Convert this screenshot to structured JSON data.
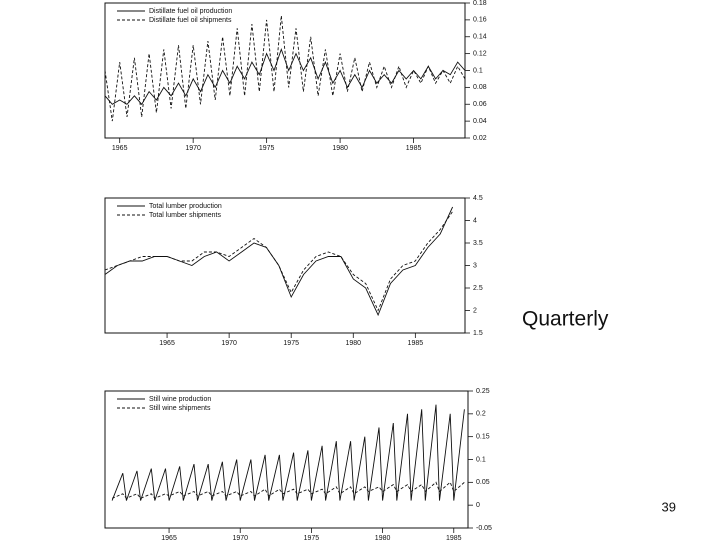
{
  "chart_data": [
    {
      "type": "line",
      "legend": "upper left",
      "xlim": [
        1964,
        1988.5
      ],
      "ylim": [
        0.02,
        0.18
      ],
      "xticks": [
        1965,
        1970,
        1975,
        1980,
        1985
      ],
      "yticks": [
        0.02,
        0.04,
        0.06,
        0.08,
        0.1,
        0.12,
        0.14,
        0.16,
        0.18
      ],
      "x": [
        1964,
        1964.5,
        1965,
        1965.5,
        1966,
        1966.5,
        1967,
        1967.5,
        1968,
        1968.5,
        1969,
        1969.5,
        1970,
        1970.5,
        1971,
        1971.5,
        1972,
        1972.5,
        1973,
        1973.5,
        1974,
        1974.5,
        1975,
        1975.5,
        1976,
        1976.5,
        1977,
        1977.5,
        1978,
        1978.5,
        1979,
        1979.5,
        1980,
        1980.5,
        1981,
        1981.5,
        1982,
        1982.5,
        1983,
        1983.5,
        1984,
        1984.5,
        1985,
        1985.5,
        1986,
        1986.5,
        1987,
        1987.5,
        1988,
        1988.5
      ],
      "series": [
        {
          "name": "Distillate fuel oil production",
          "color": "#111111",
          "style": "solid",
          "values": [
            0.07,
            0.06,
            0.065,
            0.06,
            0.07,
            0.06,
            0.075,
            0.065,
            0.08,
            0.07,
            0.085,
            0.07,
            0.09,
            0.075,
            0.095,
            0.08,
            0.1,
            0.085,
            0.105,
            0.09,
            0.11,
            0.095,
            0.12,
            0.1,
            0.125,
            0.1,
            0.12,
            0.1,
            0.115,
            0.09,
            0.11,
            0.085,
            0.1,
            0.08,
            0.095,
            0.08,
            0.1,
            0.085,
            0.095,
            0.085,
            0.1,
            0.09,
            0.1,
            0.09,
            0.105,
            0.09,
            0.1,
            0.095,
            0.11,
            0.1
          ]
        },
        {
          "name": "Distillate fuel oil shipments",
          "color": "#111111",
          "style": "dashed",
          "values": [
            0.1,
            0.04,
            0.11,
            0.045,
            0.115,
            0.045,
            0.12,
            0.05,
            0.125,
            0.055,
            0.13,
            0.055,
            0.13,
            0.06,
            0.135,
            0.065,
            0.14,
            0.07,
            0.15,
            0.07,
            0.155,
            0.075,
            0.16,
            0.075,
            0.165,
            0.08,
            0.15,
            0.075,
            0.14,
            0.07,
            0.125,
            0.07,
            0.12,
            0.075,
            0.115,
            0.075,
            0.11,
            0.08,
            0.105,
            0.08,
            0.105,
            0.08,
            0.1,
            0.085,
            0.105,
            0.085,
            0.1,
            0.085,
            0.105,
            0.09
          ]
        }
      ]
    },
    {
      "type": "line",
      "legend": "upper left",
      "xlim": [
        1960,
        1989
      ],
      "ylim": [
        1.5,
        4.5
      ],
      "xticks": [
        1965,
        1970,
        1975,
        1980,
        1985
      ],
      "yticks": [
        1.5,
        2,
        2.5,
        3,
        3.5,
        4,
        4.5
      ],
      "x": [
        1960,
        1961,
        1962,
        1963,
        1964,
        1965,
        1966,
        1967,
        1968,
        1969,
        1970,
        1971,
        1972,
        1973,
        1974,
        1975,
        1976,
        1977,
        1978,
        1979,
        1980,
        1981,
        1982,
        1983,
        1984,
        1985,
        1986,
        1987,
        1988
      ],
      "series": [
        {
          "name": "Total lumber production",
          "color": "#111111",
          "style": "solid",
          "values": [
            2.8,
            3.0,
            3.1,
            3.1,
            3.2,
            3.2,
            3.1,
            3.0,
            3.2,
            3.3,
            3.1,
            3.3,
            3.5,
            3.4,
            3.0,
            2.3,
            2.8,
            3.1,
            3.2,
            3.2,
            2.7,
            2.5,
            1.9,
            2.6,
            2.9,
            3.0,
            3.4,
            3.7,
            4.3
          ]
        },
        {
          "name": "Total lumber shipments",
          "color": "#111111",
          "style": "dashed",
          "values": [
            2.9,
            3.0,
            3.1,
            3.2,
            3.2,
            3.2,
            3.1,
            3.1,
            3.3,
            3.3,
            3.2,
            3.4,
            3.6,
            3.4,
            3.0,
            2.4,
            2.9,
            3.2,
            3.3,
            3.2,
            2.8,
            2.6,
            2.0,
            2.7,
            3.0,
            3.1,
            3.5,
            3.8,
            4.2
          ]
        }
      ]
    },
    {
      "type": "line",
      "legend": "upper left",
      "xlim": [
        1960.5,
        1986
      ],
      "ylim": [
        -0.05,
        0.25
      ],
      "xticks": [
        1965,
        1970,
        1975,
        1980,
        1985
      ],
      "yticks": [
        -0.05,
        0,
        0.05,
        0.1,
        0.15,
        0.2,
        0.25
      ],
      "x": [
        1961,
        1961.75,
        1962,
        1962.75,
        1963,
        1963.75,
        1964,
        1964.75,
        1965,
        1965.75,
        1966,
        1966.75,
        1967,
        1967.75,
        1968,
        1968.75,
        1969,
        1969.75,
        1970,
        1970.75,
        1971,
        1971.75,
        1972,
        1972.75,
        1973,
        1973.75,
        1974,
        1974.75,
        1975,
        1975.75,
        1976,
        1976.75,
        1977,
        1977.75,
        1978,
        1978.75,
        1979,
        1979.75,
        1980,
        1980.75,
        1981,
        1981.75,
        1982,
        1982.75,
        1983,
        1983.75,
        1984,
        1984.75,
        1985,
        1985.75
      ],
      "series": [
        {
          "name": "Still wine production",
          "color": "#111111",
          "style": "solid",
          "values": [
            0.01,
            0.07,
            0.01,
            0.075,
            0.01,
            0.08,
            0.01,
            0.08,
            0.01,
            0.085,
            0.01,
            0.09,
            0.01,
            0.09,
            0.01,
            0.095,
            0.01,
            0.1,
            0.01,
            0.1,
            0.01,
            0.11,
            0.01,
            0.11,
            0.01,
            0.115,
            0.01,
            0.12,
            0.01,
            0.13,
            0.01,
            0.14,
            0.01,
            0.14,
            0.01,
            0.15,
            0.01,
            0.17,
            0.01,
            0.18,
            0.01,
            0.2,
            0.01,
            0.21,
            0.01,
            0.22,
            0.01,
            0.2,
            0.01,
            0.21
          ]
        },
        {
          "name": "Still wine shipments",
          "color": "#111111",
          "style": "dashed",
          "values": [
            0.015,
            0.025,
            0.015,
            0.025,
            0.015,
            0.025,
            0.015,
            0.025,
            0.02,
            0.03,
            0.02,
            0.03,
            0.02,
            0.03,
            0.02,
            0.03,
            0.02,
            0.03,
            0.02,
            0.03,
            0.02,
            0.035,
            0.02,
            0.035,
            0.025,
            0.035,
            0.025,
            0.035,
            0.025,
            0.035,
            0.025,
            0.04,
            0.025,
            0.04,
            0.025,
            0.04,
            0.03,
            0.04,
            0.03,
            0.045,
            0.03,
            0.045,
            0.03,
            0.045,
            0.03,
            0.05,
            0.03,
            0.05,
            0.03,
            0.05
          ]
        }
      ]
    }
  ],
  "slide": {
    "caption": "Quarterly",
    "page_number": "39"
  }
}
